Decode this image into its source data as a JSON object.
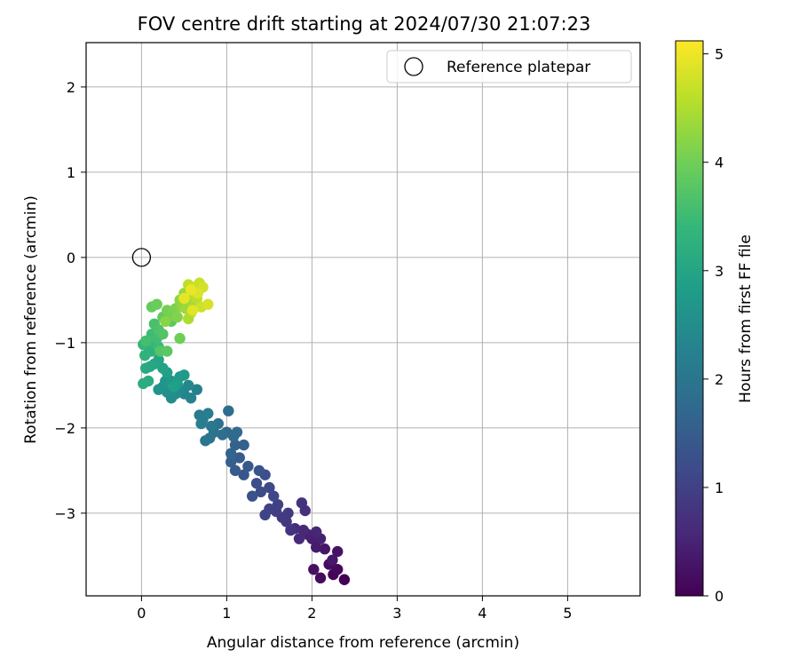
{
  "chart_data": {
    "type": "scatter",
    "title": "FOV centre drift starting at 2024/07/30 21:07:23",
    "xlabel": "Angular distance from reference (arcmin)",
    "ylabel": "Rotation from reference (arcmin)",
    "xlim": [
      -0.65,
      5.85
    ],
    "ylim": [
      -3.97,
      2.52
    ],
    "x_ticks": [
      0,
      1,
      2,
      3,
      4,
      5
    ],
    "y_ticks": [
      -3,
      -2,
      -1,
      0,
      1,
      2
    ],
    "grid": true,
    "legend": {
      "placement": "top-right",
      "entries": [
        {
          "label": "Reference platepar",
          "marker": "open-circle"
        }
      ]
    },
    "reference_point": {
      "x": 0,
      "y": 0
    },
    "colorbar": {
      "label": "Hours from first FF file",
      "range": [
        0,
        5.12
      ],
      "ticks": [
        0,
        1,
        2,
        3,
        4,
        5
      ],
      "colormap": "viridis",
      "colors": [
        "#440154",
        "#482878",
        "#3e4989",
        "#31688e",
        "#26828e",
        "#1f9e89",
        "#35b779",
        "#6ece58",
        "#b5de2b",
        "#fde725"
      ]
    },
    "series": [
      {
        "points": [
          [
            2.38,
            -3.78,
            0.02
          ],
          [
            2.25,
            -3.72,
            0.06
          ],
          [
            2.3,
            -3.66,
            0.1
          ],
          [
            2.1,
            -3.76,
            0.14
          ],
          [
            2.2,
            -3.6,
            0.18
          ],
          [
            2.02,
            -3.66,
            0.22
          ],
          [
            2.3,
            -3.45,
            0.26
          ],
          [
            2.15,
            -3.42,
            0.3
          ],
          [
            2.24,
            -3.55,
            0.34
          ],
          [
            2.05,
            -3.4,
            0.38
          ],
          [
            2.0,
            -3.3,
            0.42
          ],
          [
            2.1,
            -3.3,
            0.46
          ],
          [
            1.95,
            -3.25,
            0.5
          ],
          [
            2.05,
            -3.22,
            0.54
          ],
          [
            1.9,
            -3.2,
            0.58
          ],
          [
            1.85,
            -3.3,
            0.62
          ],
          [
            1.8,
            -3.18,
            0.66
          ],
          [
            1.92,
            -2.97,
            0.7
          ],
          [
            1.88,
            -2.88,
            0.74
          ],
          [
            1.75,
            -3.2,
            0.78
          ],
          [
            1.7,
            -3.1,
            0.82
          ],
          [
            1.72,
            -3.0,
            0.86
          ],
          [
            1.65,
            -3.05,
            0.9
          ],
          [
            1.58,
            -2.98,
            0.94
          ],
          [
            1.6,
            -2.9,
            0.98
          ],
          [
            1.5,
            -2.95,
            1.02
          ],
          [
            1.45,
            -3.02,
            1.06
          ],
          [
            1.55,
            -2.8,
            1.1
          ],
          [
            1.5,
            -2.7,
            1.14
          ],
          [
            1.4,
            -2.75,
            1.18
          ],
          [
            1.35,
            -2.65,
            1.22
          ],
          [
            1.45,
            -2.55,
            1.26
          ],
          [
            1.3,
            -2.8,
            1.3
          ],
          [
            1.38,
            -2.5,
            1.34
          ],
          [
            1.2,
            -2.55,
            1.38
          ],
          [
            1.25,
            -2.45,
            1.42
          ],
          [
            1.1,
            -2.5,
            1.46
          ],
          [
            1.15,
            -2.35,
            1.5
          ],
          [
            1.05,
            -2.4,
            1.54
          ],
          [
            1.2,
            -2.2,
            1.58
          ],
          [
            1.1,
            -2.2,
            1.62
          ],
          [
            1.05,
            -2.3,
            1.66
          ],
          [
            1.0,
            -2.05,
            1.7
          ],
          [
            1.08,
            -2.1,
            1.74
          ],
          [
            1.12,
            -2.05,
            1.78
          ],
          [
            1.02,
            -1.8,
            1.82
          ],
          [
            0.95,
            -2.08,
            1.86
          ],
          [
            0.85,
            -2.05,
            1.9
          ],
          [
            0.9,
            -1.95,
            1.94
          ],
          [
            0.8,
            -2.12,
            1.98
          ],
          [
            0.75,
            -2.15,
            2.02
          ],
          [
            0.82,
            -1.98,
            2.06
          ],
          [
            0.72,
            -1.9,
            2.1
          ],
          [
            0.68,
            -1.85,
            2.14
          ],
          [
            0.78,
            -1.83,
            2.18
          ],
          [
            0.7,
            -1.95,
            2.22
          ],
          [
            0.65,
            -1.55,
            2.26
          ],
          [
            0.58,
            -1.65,
            2.3
          ],
          [
            0.5,
            -1.6,
            2.34
          ],
          [
            0.55,
            -1.5,
            2.38
          ],
          [
            0.45,
            -1.55,
            2.42
          ],
          [
            0.4,
            -1.6,
            2.46
          ],
          [
            0.35,
            -1.65,
            2.5
          ],
          [
            0.3,
            -1.58,
            2.54
          ],
          [
            0.25,
            -1.52,
            2.58
          ],
          [
            0.2,
            -1.55,
            2.62
          ],
          [
            0.28,
            -1.45,
            2.66
          ],
          [
            0.35,
            -1.45,
            2.7
          ],
          [
            0.45,
            -1.4,
            2.74
          ],
          [
            0.5,
            -1.38,
            2.78
          ],
          [
            0.42,
            -1.48,
            2.82
          ],
          [
            0.38,
            -1.52,
            2.86
          ],
          [
            0.3,
            -1.35,
            2.9
          ],
          [
            0.25,
            -1.3,
            2.94
          ],
          [
            0.2,
            -1.2,
            2.98
          ],
          [
            0.15,
            -1.25,
            3.02
          ],
          [
            0.1,
            -1.28,
            3.06
          ],
          [
            0.05,
            -1.3,
            3.1
          ],
          [
            0.08,
            -1.45,
            3.14
          ],
          [
            0.02,
            -1.48,
            3.18
          ],
          [
            0.12,
            -1.1,
            3.22
          ],
          [
            0.08,
            -1.05,
            3.26
          ],
          [
            0.04,
            -1.15,
            3.3
          ],
          [
            0.02,
            -1.02,
            3.34
          ],
          [
            0.1,
            -0.98,
            3.38
          ],
          [
            0.15,
            -1.0,
            3.42
          ],
          [
            0.2,
            -1.05,
            3.46
          ],
          [
            0.12,
            -0.9,
            3.5
          ],
          [
            0.18,
            -0.95,
            3.54
          ],
          [
            0.05,
            -0.98,
            3.58
          ],
          [
            0.15,
            -0.78,
            3.62
          ],
          [
            0.2,
            -0.85,
            3.66
          ],
          [
            0.25,
            -0.9,
            3.7
          ],
          [
            0.22,
            -1.1,
            3.74
          ],
          [
            0.3,
            -1.1,
            3.78
          ],
          [
            0.35,
            -0.75,
            3.82
          ],
          [
            0.25,
            -0.7,
            3.86
          ],
          [
            0.12,
            -0.58,
            3.9
          ],
          [
            0.18,
            -0.55,
            3.94
          ],
          [
            0.45,
            -0.95,
            3.98
          ],
          [
            0.3,
            -0.62,
            4.02
          ],
          [
            0.35,
            -0.68,
            4.06
          ],
          [
            0.4,
            -0.6,
            4.1
          ],
          [
            0.42,
            -0.7,
            4.14
          ],
          [
            0.28,
            -0.75,
            4.18
          ],
          [
            0.45,
            -0.5,
            4.22
          ],
          [
            0.48,
            -0.58,
            4.26
          ],
          [
            0.5,
            -0.42,
            4.3
          ],
          [
            0.52,
            -0.6,
            4.34
          ],
          [
            0.55,
            -0.5,
            4.38
          ],
          [
            0.6,
            -0.55,
            4.42
          ],
          [
            0.58,
            -0.65,
            4.46
          ],
          [
            0.55,
            -0.72,
            4.5
          ],
          [
            0.62,
            -0.45,
            4.54
          ],
          [
            0.65,
            -0.48,
            4.58
          ],
          [
            0.55,
            -0.32,
            4.62
          ],
          [
            0.62,
            -0.35,
            4.66
          ],
          [
            0.68,
            -0.3,
            4.7
          ],
          [
            0.7,
            -0.58,
            4.74
          ],
          [
            0.72,
            -0.35,
            4.78
          ],
          [
            0.78,
            -0.55,
            4.82
          ],
          [
            0.66,
            -0.42,
            4.86
          ],
          [
            0.6,
            -0.62,
            4.9
          ],
          [
            0.5,
            -0.48,
            4.94
          ],
          [
            0.58,
            -0.38,
            4.98
          ]
        ]
      }
    ]
  }
}
